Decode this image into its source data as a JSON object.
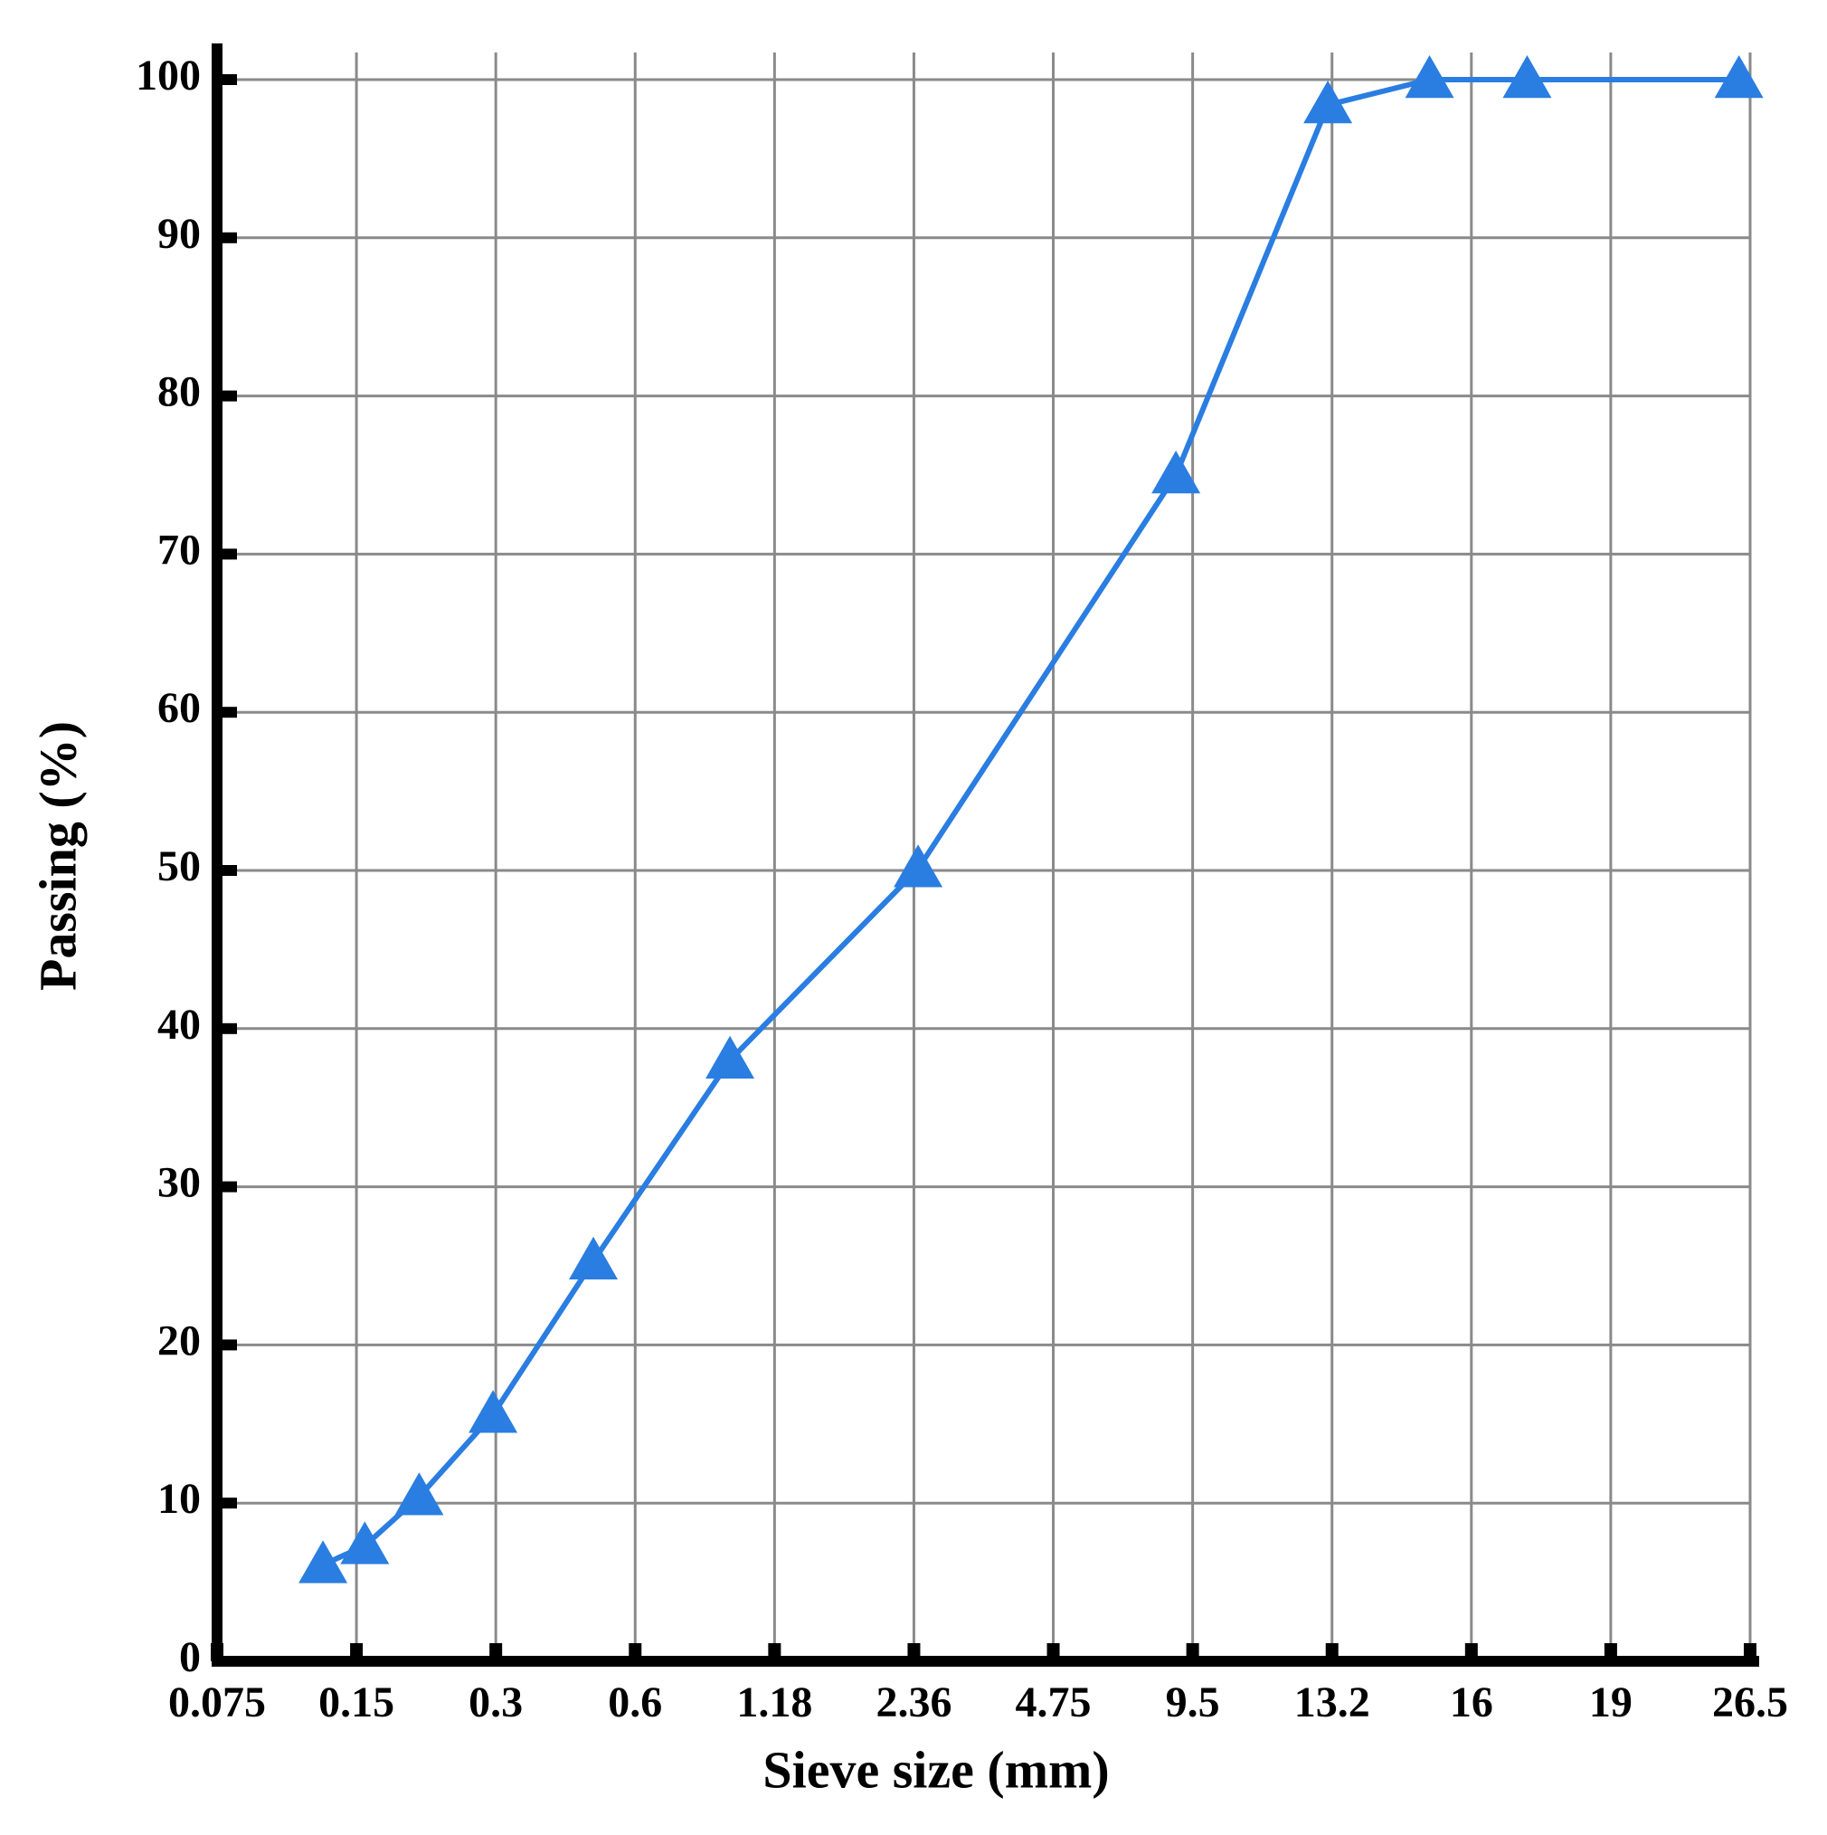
{
  "chart_data": {
    "type": "line",
    "x_label": "Sieve size (mm)",
    "y_label": "Passing (%)",
    "color": "#2a7de1",
    "marker": "triangle",
    "grid": true,
    "x": [
      0.76,
      1.06,
      1.45,
      1.98,
      2.7,
      3.68,
      5.03,
      6.88,
      7.97,
      8.7,
      9.4,
      10.92
    ],
    "values": [
      6.1,
      7.3,
      10.4,
      15.6,
      25.3,
      38,
      50.1,
      75,
      98.4,
      100,
      100,
      100
    ],
    "xlim": [
      0,
      11
    ],
    "xticks": [
      {
        "value": 0,
        "label": "0.075"
      },
      {
        "value": 1,
        "label": "0.15"
      },
      {
        "value": 2,
        "label": "0.3"
      },
      {
        "value": 3,
        "label": "0.6"
      },
      {
        "value": 4,
        "label": "1.18"
      },
      {
        "value": 5,
        "label": "2.36"
      },
      {
        "value": 6,
        "label": "4.75"
      },
      {
        "value": 7,
        "label": "9.5"
      },
      {
        "value": 8,
        "label": "13.2"
      },
      {
        "value": 9,
        "label": "16"
      },
      {
        "value": 10,
        "label": "19"
      },
      {
        "value": 11,
        "label": "26.5"
      }
    ],
    "ylim": [
      0,
      100
    ],
    "yticks": [
      0,
      10,
      20,
      30,
      40,
      50,
      60,
      70,
      80,
      90,
      100
    ]
  }
}
